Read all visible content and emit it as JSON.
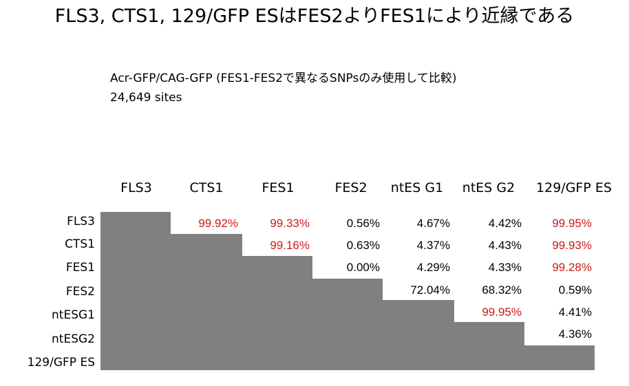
{
  "title": "FLS3, CTS1, 129/GFP ESはFES2よりFES1により近縁である",
  "subtitle": "Acr-GFP/CAG-GFP (FES1-FES2で異なるSNPsのみ使用して比較)",
  "sites": "24,649 sites",
  "columns": [
    "FLS3",
    "CTS1",
    "FES1",
    "FES2",
    "ntES G1",
    "ntES G2",
    "129/GFP ES"
  ],
  "rows": [
    "FLS3",
    "CTS1",
    "FES1",
    "FES2",
    "ntESG1",
    "ntESG2",
    "129/GFP ES"
  ],
  "cells": {
    "FLS3": [
      "99.92%",
      "99.33%",
      "0.56%",
      "4.67%",
      "4.42%",
      "99.95%"
    ],
    "CTS1": [
      "99.16%",
      "0.63%",
      "4.37%",
      "4.43%",
      "99.93%"
    ],
    "FES1": [
      "0.00%",
      "4.29%",
      "4.33%",
      "99.28%"
    ],
    "FES2": [
      "72.04%",
      "68.32%",
      "0.59%"
    ],
    "ntESG1": [
      "99.95%",
      "4.41%"
    ],
    "ntESG2": [
      "4.36%"
    ]
  },
  "colors": {
    "highlight": "#cc1a1a",
    "normal": "#000000",
    "diagonal": "#808080"
  }
}
